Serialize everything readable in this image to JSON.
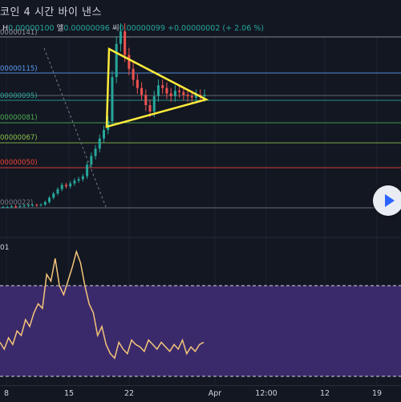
{
  "header": {
    "title": "코인  4 시간  바이 낸스",
    "ohlc_h_label": "H",
    "ohlc_h_value": "0.00000100",
    "ohlc_l_label": "엘",
    "ohlc_l_value": "0.00000096",
    "ohlc_c_label": "씨",
    "ohlc_c_value": "0.00000099",
    "ohlc_change": "+0.00000002 (+ 2.06 %)"
  },
  "price_labels": [
    {
      "text": "00000141)",
      "color": "#9598a1"
    },
    {
      "text": "00000115)",
      "color": "#5b9cf6"
    },
    {
      "text": "00000095)",
      "color": "#26a69a"
    },
    {
      "text": "00000081)",
      "color": "#4caf50"
    },
    {
      "text": "00000067)",
      "color": "#8bc34a"
    },
    {
      "text": "00000050)",
      "color": "#f44336"
    },
    {
      "text": "0000022)",
      "color": "#787b86"
    }
  ],
  "rsi_label": "01",
  "x_axis": [
    "8",
    "15",
    "22",
    "Apr",
    "12:00",
    "12",
    "19"
  ],
  "colors": {
    "background": "#131722",
    "candle_up": "#26a69a",
    "candle_down": "#ef5350",
    "triangle": "#ffeb3b",
    "rsi_line": "#f5c57a",
    "rsi_band": "#3b2a6b"
  },
  "play_button_icon": "play-icon",
  "chart_data": {
    "type": "candlestick",
    "horizontal_levels": [
      1.41e-06,
      1.15e-06,
      9.5e-07,
      8.1e-07,
      6.7e-07,
      5e-07,
      2.2e-07
    ],
    "closes": [
      2.25e-07,
      2.25e-07,
      2.3e-07,
      2.28e-07,
      2.32e-07,
      2.35e-07,
      2.38e-07,
      2.4e-07,
      2.38e-07,
      2.42e-07,
      2.6e-07,
      2.9e-07,
      3.2e-07,
      3.5e-07,
      3.8e-07,
      3.7e-07,
      3.9e-07,
      4.1e-07,
      4.2e-07,
      4.4e-07,
      5.2e-07,
      5.8e-07,
      6.3e-07,
      7e-07,
      7.6e-07,
      8.2e-07,
      1.12e-06,
      1.36e-06,
      1.45e-06,
      1.28e-06,
      1.18e-06,
      1.1e-06,
      1.04e-06,
      9.9e-07,
      9.2e-07,
      8.8e-07,
      9.8e-07,
      1.06e-06,
      1.04e-06,
      1e-06,
      9.8e-07,
      1.02e-06,
      1.01e-06,
      9.9e-07,
      9.8e-07,
      9.7e-07,
      9.9e-07,
      9.8e-07,
      9.9e-07
    ],
    "rsi": [
      45,
      42,
      47,
      44,
      50,
      48,
      55,
      52,
      58,
      62,
      60,
      75,
      72,
      82,
      70,
      66,
      72,
      78,
      85,
      80,
      70,
      62,
      58,
      48,
      52,
      44,
      40,
      38,
      45,
      42,
      40,
      46,
      44,
      43,
      41,
      46,
      44,
      42,
      45,
      43,
      41,
      44,
      42,
      46,
      40,
      43,
      41,
      44,
      45
    ]
  }
}
